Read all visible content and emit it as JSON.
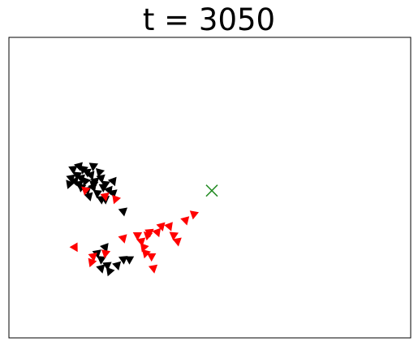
{
  "chart_data": {
    "type": "scatter",
    "title": "t = 3050",
    "xlabel": "",
    "ylabel": "",
    "axes_ticks": false,
    "xlim": [
      0,
      100
    ],
    "ylim": [
      0,
      100
    ],
    "grid": false,
    "colors": {
      "red_agents": "#ff0000",
      "black_agents": "#000000",
      "target_marker": "#228b22",
      "frame": "#000000"
    },
    "series": [
      {
        "marker": "triangle",
        "color": "#000000",
        "points": [
          [
            15,
            51,
            200
          ],
          [
            15.5,
            53,
            170
          ],
          [
            16.5,
            52,
            160
          ],
          [
            16,
            56,
            175
          ],
          [
            17,
            54,
            185
          ],
          [
            17.5,
            57,
            165
          ],
          [
            18.5,
            56,
            190
          ],
          [
            18,
            53,
            170
          ],
          [
            19,
            52,
            200
          ],
          [
            19.5,
            55,
            175
          ],
          [
            20.5,
            54,
            160
          ],
          [
            21,
            57,
            185
          ],
          [
            21.5,
            52,
            170
          ],
          [
            22.5,
            55,
            195
          ],
          [
            23,
            53,
            170
          ],
          [
            24,
            51,
            185
          ],
          [
            25,
            49,
            160
          ],
          [
            24,
            46,
            175
          ],
          [
            26,
            48,
            170
          ],
          [
            21,
            50,
            160
          ],
          [
            22,
            48,
            185
          ],
          [
            23,
            46,
            175
          ],
          [
            20,
            47,
            165
          ],
          [
            18,
            50,
            190
          ],
          [
            19.5,
            49,
            170
          ],
          [
            21,
            51,
            190
          ],
          [
            23.5,
            50,
            180
          ],
          [
            17.5,
            51,
            175
          ],
          [
            26,
            52,
            160
          ],
          [
            28.5,
            42,
            170
          ],
          [
            22,
            28,
            170
          ],
          [
            23,
            26,
            185
          ],
          [
            24.5,
            24,
            175
          ],
          [
            25,
            22,
            200
          ],
          [
            27,
            24,
            165
          ],
          [
            28.5,
            26,
            175
          ],
          [
            23,
            23,
            165
          ],
          [
            30,
            26,
            180
          ],
          [
            24,
            30,
            160
          ]
        ]
      },
      {
        "marker": "triangle",
        "color": "#ff0000",
        "points": [
          [
            19,
            49,
            190
          ],
          [
            24,
            47,
            170
          ],
          [
            26.5,
            46,
            200
          ],
          [
            16.5,
            30,
            150
          ],
          [
            21,
            27,
            170
          ],
          [
            24,
            28,
            190
          ],
          [
            20.5,
            25,
            200
          ],
          [
            28.5,
            33,
            165
          ],
          [
            32,
            34,
            180
          ],
          [
            33,
            32,
            170
          ],
          [
            34.5,
            34,
            190
          ],
          [
            33.5,
            30,
            200
          ],
          [
            35,
            35,
            175
          ],
          [
            37,
            35,
            160
          ],
          [
            35.5,
            27,
            180
          ],
          [
            36,
            23,
            170
          ],
          [
            38,
            37,
            165
          ],
          [
            40,
            37,
            160
          ],
          [
            41,
            34,
            185
          ],
          [
            42,
            32,
            170
          ],
          [
            44,
            39,
            165
          ],
          [
            46,
            41,
            190
          ],
          [
            34,
            28,
            195
          ]
        ]
      },
      {
        "marker": "x",
        "color": "#228b22",
        "points": [
          [
            50.5,
            49,
            0
          ]
        ]
      }
    ]
  }
}
